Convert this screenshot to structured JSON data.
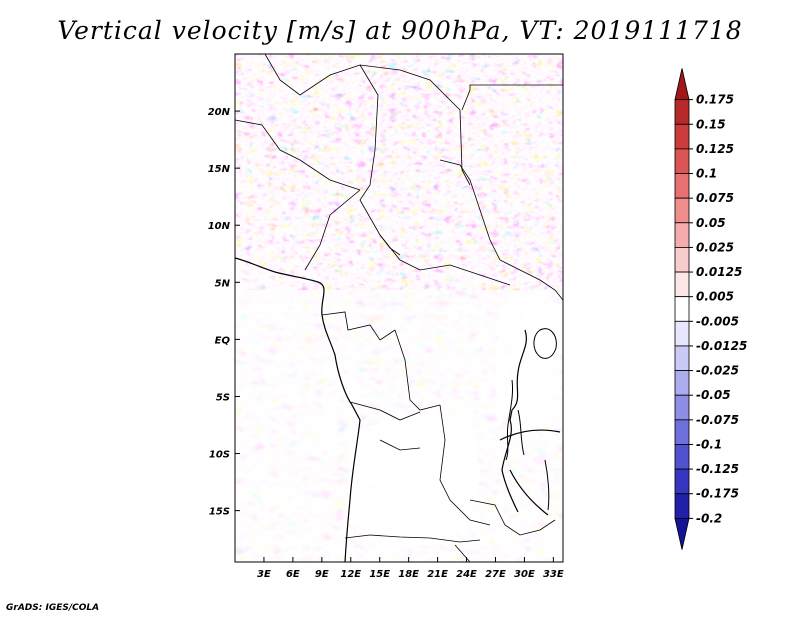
{
  "title": "Vertical velocity [m/s] at 900hPa, VT: 2019111718",
  "credit": "GrADS: IGES/COLA",
  "map": {
    "lon_ticks": [
      "3E",
      "6E",
      "9E",
      "12E",
      "15E",
      "18E",
      "21E",
      "24E",
      "27E",
      "30E",
      "33E"
    ],
    "lat_ticks": [
      "20N",
      "15N",
      "10N",
      "5N",
      "EQ",
      "5S",
      "10S",
      "15S"
    ],
    "lon_range": [
      0,
      34
    ],
    "lat_range": [
      -19.5,
      25
    ],
    "lon_values": [
      3,
      6,
      9,
      12,
      15,
      18,
      21,
      24,
      27,
      30,
      33
    ],
    "lat_values": [
      20,
      15,
      10,
      5,
      0,
      -5,
      -10,
      -15
    ]
  },
  "colorbar": {
    "labels": [
      "0.175",
      "0.15",
      "0.125",
      "0.1",
      "0.075",
      "0.05",
      "0.025",
      "0.0125",
      "0.005",
      "-0.005",
      "-0.0125",
      "-0.025",
      "-0.05",
      "-0.075",
      "-0.1",
      "-0.125",
      "-0.175",
      "-0.2"
    ],
    "colors": [
      "#a01818",
      "#b82a2a",
      "#cc3c3c",
      "#dc5555",
      "#e87070",
      "#f08e8e",
      "#f5acac",
      "#f9cccc",
      "#fce6e6",
      "#ffffff",
      "#e6e6fc",
      "#cacaf6",
      "#acacee",
      "#8e8ee6",
      "#7070dc",
      "#5252d0",
      "#3636c0",
      "#2020a8",
      "#141496"
    ]
  }
}
